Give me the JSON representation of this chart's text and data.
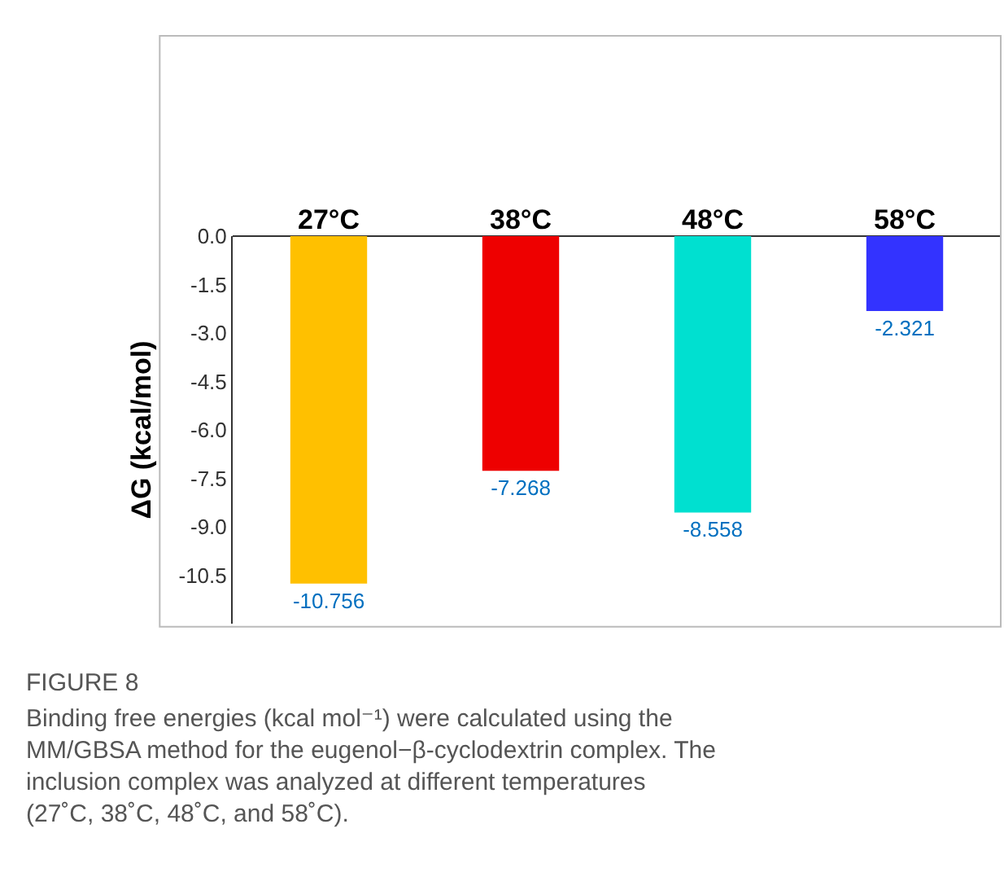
{
  "chart_data": {
    "type": "bar",
    "categories": [
      "27°C",
      "38°C",
      "48°C",
      "58°C"
    ],
    "values": [
      -10.756,
      -7.268,
      -8.558,
      -2.321
    ],
    "colors": [
      "#ffc000",
      "#ee0000",
      "#00e0d0",
      "#3333ff"
    ],
    "data_labels": true,
    "ylabel": "ΔG (kcal/mol)",
    "ylim": [
      -12,
      0
    ],
    "yticks": [
      {
        "value": 0,
        "label": "0.0"
      },
      -1.5,
      {
        "value": -3,
        "label": "-3.0"
      },
      -4.5,
      {
        "value": -6,
        "label": "-6.0"
      },
      -7.5,
      {
        "value": -9,
        "label": "-9.0"
      },
      -10.5
    ],
    "grid": false,
    "annotations": [
      "FIGURE 8",
      "Binding free energies (kcal mol⁻¹) were calculated using the MM/GBSA method for the eugenol−β-cyclodextrin complex. The inclusion complex was analyzed at different temperatures (27˚C, 38˚C, 48˚C, and 58˚C)."
    ]
  }
}
